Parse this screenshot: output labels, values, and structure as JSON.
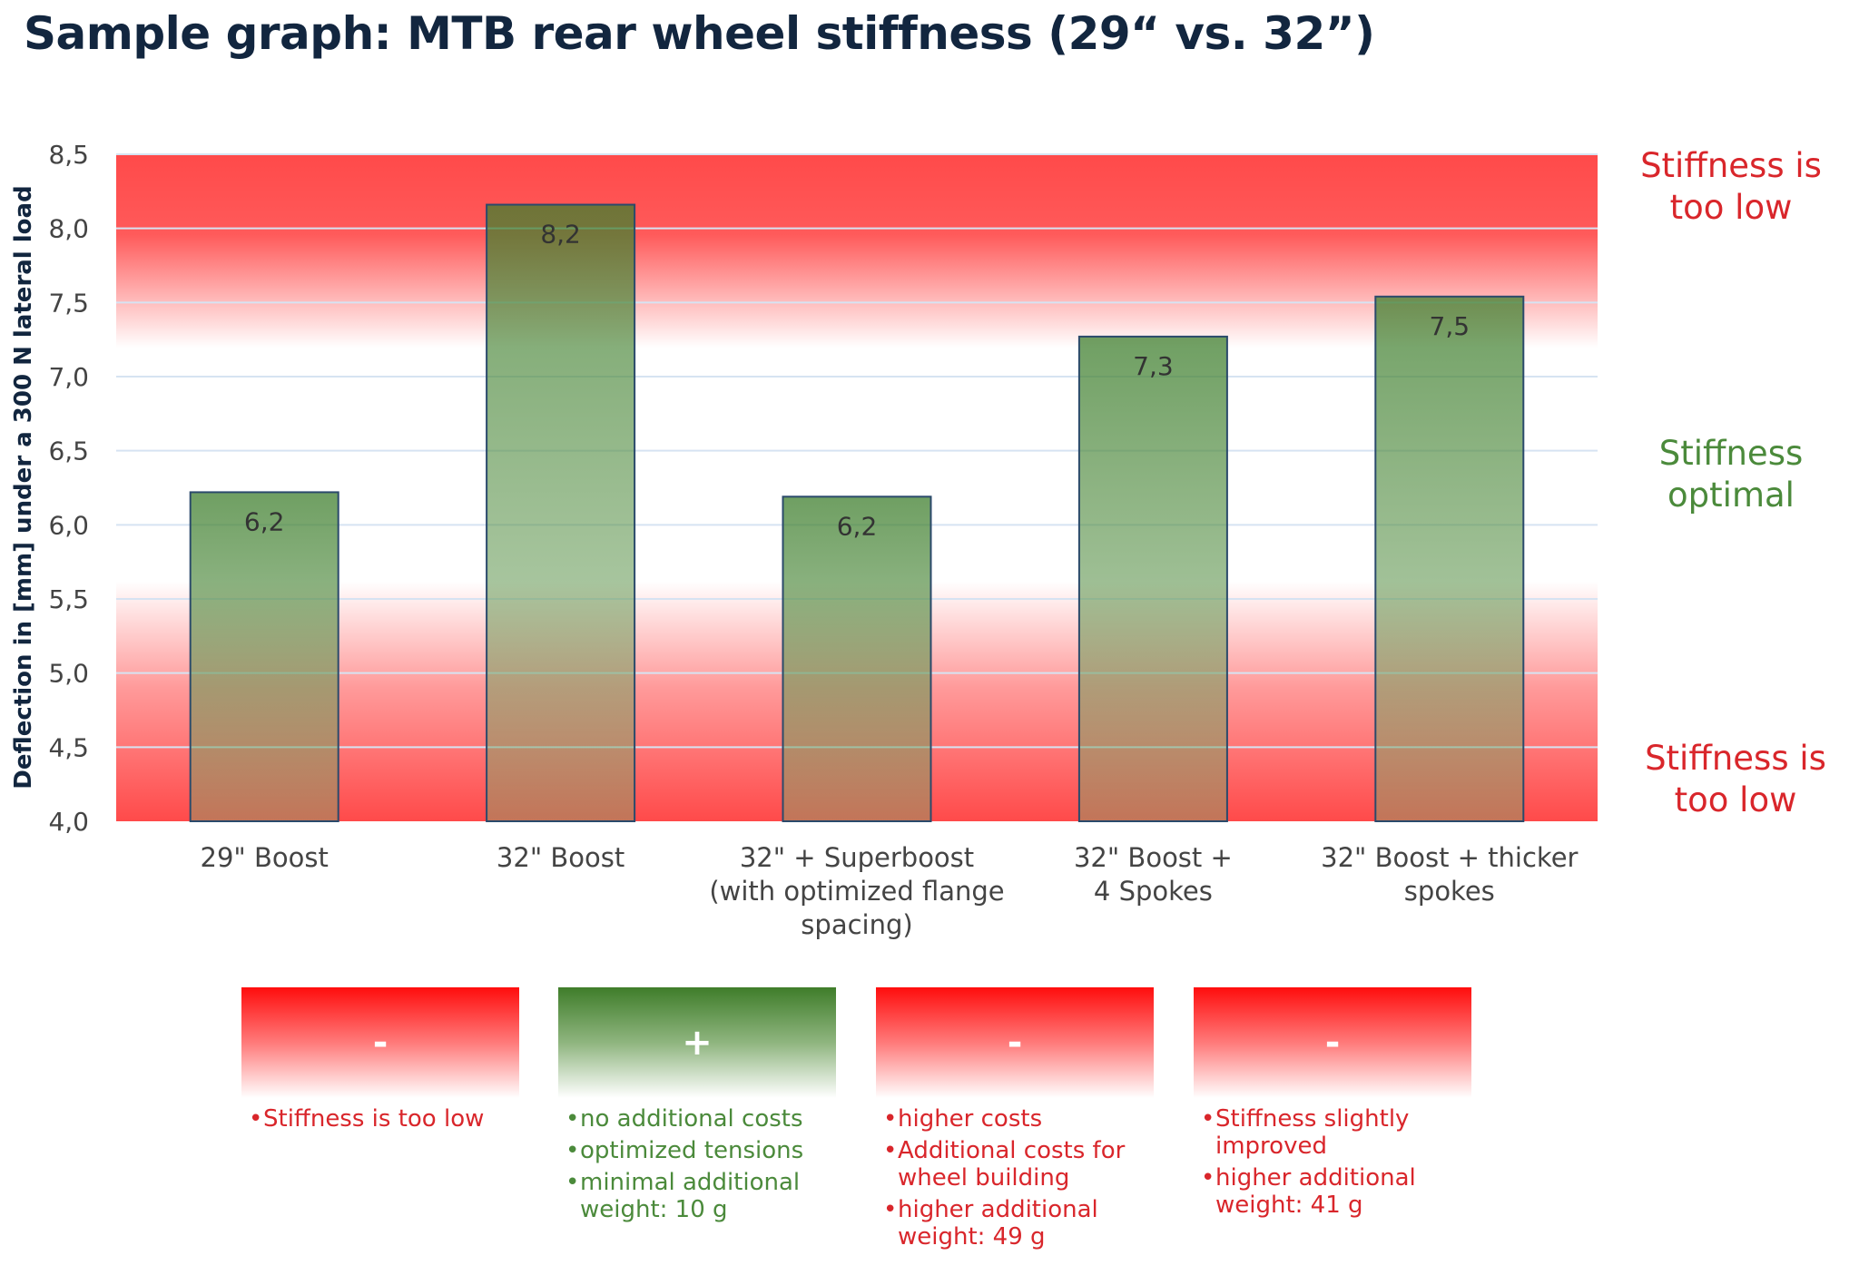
{
  "title": "Sample graph: MTB rear wheel stiffness (29“ vs. 32”)",
  "chart_data": {
    "type": "bar",
    "title": "Sample graph: MTB rear wheel stiffness (29“ vs. 32”)",
    "xlabel": "",
    "ylabel": "Deflection in [mm] under a 300 N lateral load",
    "ylim": [
      4.0,
      8.5
    ],
    "yticks": [
      "4,0",
      "4,5",
      "5,0",
      "5,5",
      "6,0",
      "6,5",
      "7,0",
      "7,5",
      "8,0",
      "8,5"
    ],
    "grid": true,
    "categories": [
      [
        "29\" Boost"
      ],
      [
        "32\" Boost"
      ],
      [
        "32\" + Superboost",
        "(with optimized flange",
        "spacing)"
      ],
      [
        "32\" Boost +",
        "4 Spokes"
      ],
      [
        "32\" Boost + thicker",
        "spokes"
      ]
    ],
    "values": [
      6.22,
      8.16,
      6.19,
      7.27,
      7.54
    ],
    "data_labels": [
      "6,2",
      "8,2",
      "6,2",
      "7,3",
      "7,5"
    ],
    "zones": [
      {
        "label": [
          "Stiffness is",
          "too low"
        ],
        "range": [
          7.2,
          8.5
        ],
        "color": "#ff4a4a"
      },
      {
        "label": [
          "Stiffness",
          "optimal"
        ],
        "range": [
          5.6,
          7.2
        ],
        "color": "#4b8a3b"
      },
      {
        "label": [
          "Stiffness is",
          "too low"
        ],
        "range": [
          4.0,
          5.6
        ],
        "color": "#ff4a4a"
      }
    ]
  },
  "colors": {
    "red": "#d9262b",
    "green": "#4b8a3b",
    "title": "#12263f",
    "bar_border": "#2b4a6b"
  },
  "assessment": [
    {
      "symbol": "-",
      "tone": "red",
      "points": [
        "Stiffness is too low"
      ]
    },
    {
      "symbol": "+",
      "tone": "green",
      "points": [
        "no additional costs",
        "optimized tensions",
        "minimal additional weight: 10 g"
      ]
    },
    {
      "symbol": "-",
      "tone": "red",
      "points": [
        "higher costs",
        "Additional costs for wheel building",
        "higher additional weight: 49 g"
      ]
    },
    {
      "symbol": "-",
      "tone": "red",
      "points": [
        "Stiffness slightly improved",
        "higher additional weight: 41 g"
      ]
    }
  ]
}
